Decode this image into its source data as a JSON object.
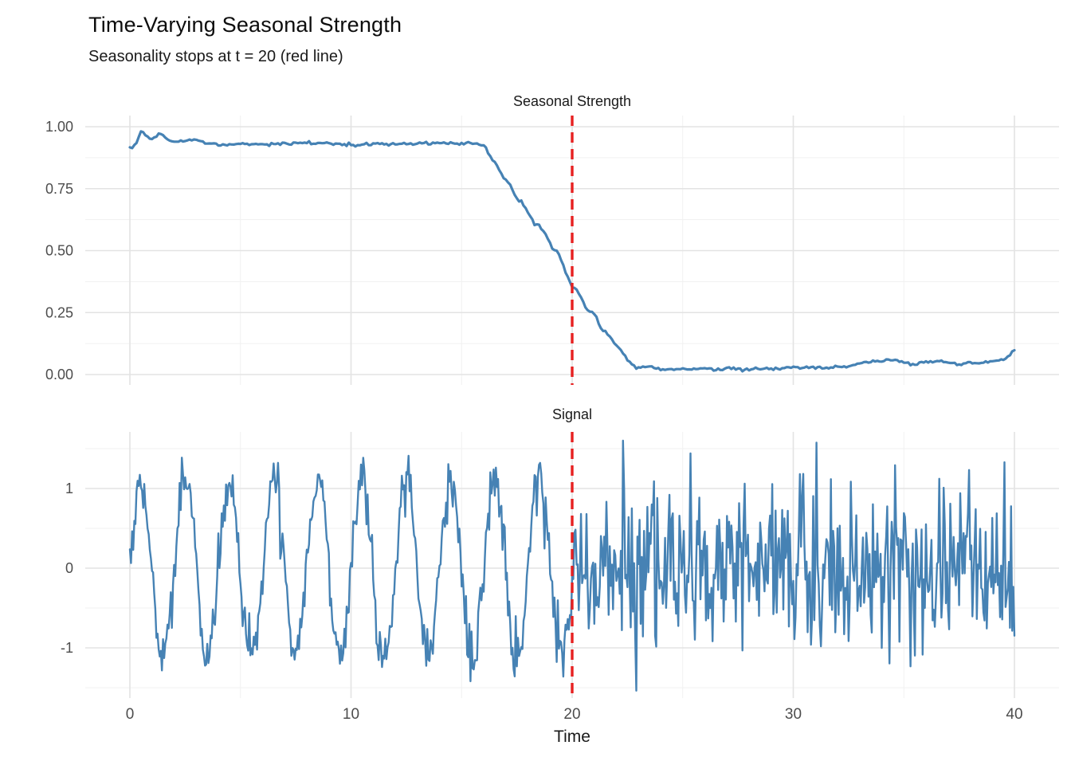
{
  "chart_data": {
    "type": "line",
    "title": "Time-Varying Seasonal Strength",
    "subtitle": "Seasonality stops at t = 20 (red line)",
    "xlabel": "Time",
    "xlim": [
      -2,
      42
    ],
    "x_ticks": [
      {
        "v": 0,
        "label": "0"
      },
      {
        "v": 10,
        "label": "10"
      },
      {
        "v": 20,
        "label": "20"
      },
      {
        "v": 30,
        "label": "30"
      },
      {
        "v": 40,
        "label": "40"
      }
    ],
    "x_minor": [
      5,
      15,
      25,
      35
    ],
    "grid": true,
    "legend": "none",
    "vline": {
      "x": 20,
      "style": "dashed",
      "color": "#e62020",
      "meaning": "seasonality stops at t = 20"
    },
    "colors": {
      "series": "#4682b4",
      "vline": "#e62020",
      "grid_major": "#e3e3e3",
      "grid_minor": "#f1f1f1",
      "tick_text": "#4d4d4d",
      "title_text": "#1a1a1a",
      "background": "#ffffff"
    },
    "panels": [
      {
        "title": "Seasonal Strength",
        "ylim": [
          -0.04,
          1.04
        ],
        "y_ticks": [
          {
            "v": 0,
            "label": "0.00"
          },
          {
            "v": 0.25,
            "label": "0.25"
          },
          {
            "v": 0.5,
            "label": "0.50"
          },
          {
            "v": 0.75,
            "label": "0.75"
          },
          {
            "v": 1,
            "label": "1.00"
          }
        ],
        "y_minor": [
          0.125,
          0.375,
          0.625,
          0.875
        ],
        "series": {
          "name": "seasonal_strength",
          "x": [
            0,
            0.25,
            0.55,
            0.85,
            1.05,
            1.35,
            1.7,
            2.1,
            2.5,
            2.9,
            3.3,
            3.7,
            4.2,
            5,
            6,
            7,
            8,
            9,
            10,
            11,
            12,
            13,
            13.6,
            14.2,
            15,
            15.4,
            15.8,
            16.05,
            16.3,
            16.6,
            16.9,
            17.1,
            17.5,
            17.7,
            18,
            18.3,
            18.55,
            18.8,
            19.1,
            19.35,
            19.6,
            19.85,
            20,
            20.2,
            20.45,
            20.7,
            21,
            21.3,
            21.55,
            21.8,
            22,
            22.2,
            22.5,
            22.8,
            23,
            23.5,
            23.8,
            24.5,
            25,
            25.5,
            26,
            26.5,
            27,
            27.5,
            28,
            28.5,
            29,
            29.5,
            30,
            30.3,
            30.7,
            31,
            31.5,
            32,
            32.5,
            33,
            33.4,
            33.8,
            34.2,
            34.6,
            35,
            35.4,
            35.8,
            36.2,
            36.6,
            37,
            37.4,
            37.7,
            38,
            38.4,
            38.7,
            39,
            39.4,
            39.7,
            40
          ],
          "y": [
            0.915,
            0.93,
            0.985,
            0.95,
            0.955,
            0.975,
            0.95,
            0.935,
            0.942,
            0.95,
            0.94,
            0.93,
            0.927,
            0.93,
            0.928,
            0.93,
            0.933,
            0.932,
            0.928,
            0.93,
            0.929,
            0.932,
            0.935,
            0.933,
            0.93,
            0.937,
            0.93,
            0.925,
            0.88,
            0.84,
            0.79,
            0.78,
            0.71,
            0.695,
            0.655,
            0.61,
            0.6,
            0.565,
            0.51,
            0.495,
            0.44,
            0.38,
            0.355,
            0.345,
            0.3,
            0.26,
            0.25,
            0.185,
            0.17,
            0.14,
            0.115,
            0.1,
            0.06,
            0.035,
            0.028,
            0.035,
            0.022,
            0.02,
            0.024,
            0.021,
            0.023,
            0.02,
            0.025,
            0.022,
            0.02,
            0.023,
            0.021,
            0.026,
            0.032,
            0.026,
            0.03,
            0.029,
            0.027,
            0.03,
            0.028,
            0.042,
            0.05,
            0.053,
            0.057,
            0.06,
            0.048,
            0.04,
            0.046,
            0.052,
            0.056,
            0.05,
            0.04,
            0.048,
            0.052,
            0.044,
            0.048,
            0.052,
            0.058,
            0.07,
            0.1
          ],
          "sample_step": 0.1,
          "jitter_sd": 0.003,
          "seed": 7
        }
      },
      {
        "title": "Signal",
        "ylim": [
          -1.7,
          1.7
        ],
        "y_ticks": [
          {
            "v": -1,
            "label": "-1"
          },
          {
            "v": 0,
            "label": "0"
          },
          {
            "v": 1,
            "label": "1"
          }
        ],
        "y_minor": [
          -1.5,
          -0.5,
          0.5,
          1.5
        ],
        "generator": {
          "name": "signal",
          "description": "seasonal sine with noise until t=20, pure noise after",
          "t_min": 0,
          "t_max": 40,
          "step": 0.05,
          "seasonal_until": 20,
          "period": 2,
          "amplitude": 1.1,
          "noise_sd_seasonal": 0.17,
          "noise_sd_after": 0.52,
          "clip": [
            -1.55,
            1.6
          ],
          "seed": 20
        }
      }
    ]
  }
}
